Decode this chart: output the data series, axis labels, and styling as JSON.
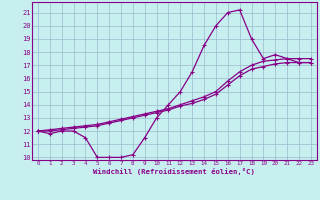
{
  "xlabel": "Windchill (Refroidissement éolien,°C)",
  "bg_color": "#c8eff0",
  "line_color": "#880088",
  "grid_color": "#99bbcc",
  "xlim": [
    -0.5,
    23.5
  ],
  "ylim": [
    9.8,
    21.8
  ],
  "yticks": [
    10,
    11,
    12,
    13,
    14,
    15,
    16,
    17,
    18,
    19,
    20,
    21
  ],
  "xticks": [
    0,
    1,
    2,
    3,
    4,
    5,
    6,
    7,
    8,
    9,
    10,
    11,
    12,
    13,
    14,
    15,
    16,
    17,
    18,
    19,
    20,
    21,
    22,
    23
  ],
  "curve1_x": [
    0,
    1,
    2,
    3,
    4,
    5,
    6,
    7,
    8,
    9,
    10,
    11,
    12,
    13,
    14,
    15,
    16,
    17,
    18,
    19,
    20,
    21,
    22,
    23
  ],
  "curve1_y": [
    12.0,
    11.8,
    12.0,
    12.0,
    11.5,
    10.0,
    10.0,
    10.0,
    10.2,
    11.5,
    13.0,
    14.0,
    15.0,
    16.5,
    18.5,
    20.0,
    21.0,
    21.2,
    19.0,
    17.5,
    17.8,
    17.5,
    17.2,
    17.2
  ],
  "curve2_x": [
    0,
    1,
    2,
    3,
    4,
    5,
    6,
    7,
    8,
    9,
    10,
    11,
    12,
    13,
    14,
    15,
    16,
    17,
    18,
    19,
    20,
    21,
    22,
    23
  ],
  "curve2_y": [
    12.0,
    12.1,
    12.2,
    12.3,
    12.4,
    12.5,
    12.7,
    12.9,
    13.1,
    13.3,
    13.5,
    13.7,
    14.0,
    14.3,
    14.6,
    15.0,
    15.8,
    16.5,
    17.0,
    17.3,
    17.4,
    17.5,
    17.5,
    17.5
  ],
  "curve3_x": [
    0,
    1,
    2,
    3,
    4,
    5,
    6,
    7,
    8,
    9,
    10,
    11,
    12,
    13,
    14,
    15,
    16,
    17,
    18,
    19,
    20,
    21,
    22,
    23
  ],
  "curve3_y": [
    12.0,
    12.0,
    12.1,
    12.2,
    12.3,
    12.4,
    12.6,
    12.8,
    13.0,
    13.2,
    13.4,
    13.6,
    13.9,
    14.1,
    14.4,
    14.8,
    15.5,
    16.2,
    16.7,
    16.9,
    17.1,
    17.2,
    17.2,
    17.2
  ]
}
